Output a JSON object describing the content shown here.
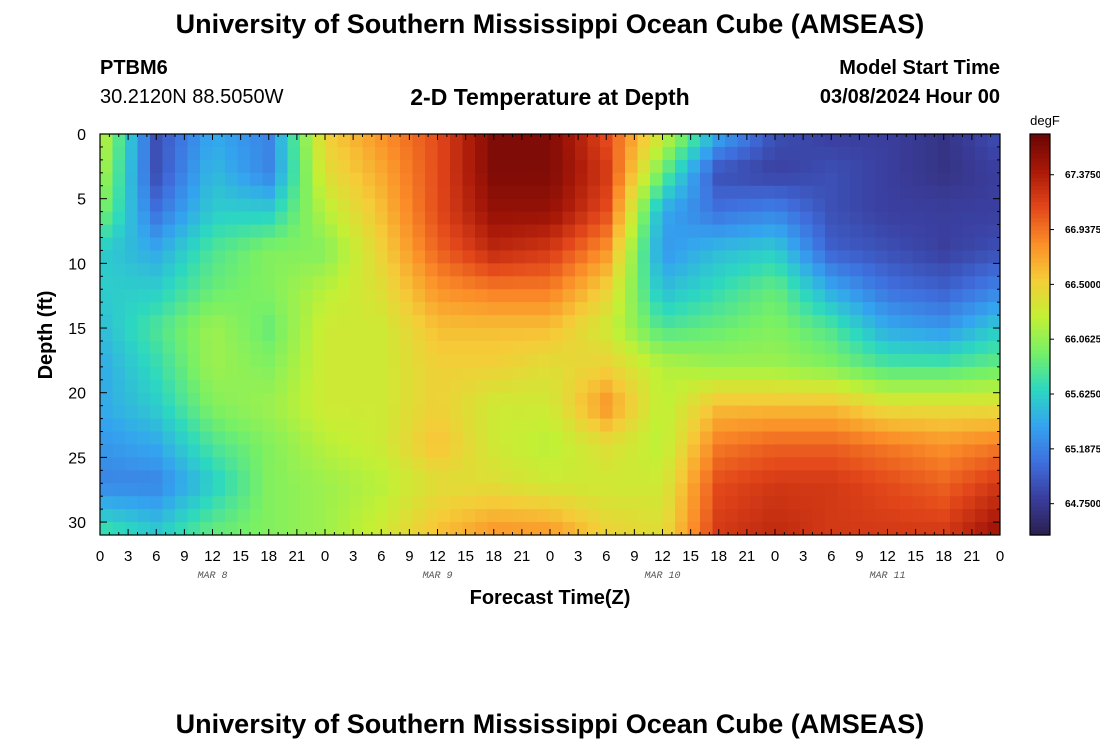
{
  "page": {
    "title": "University of Southern Mississippi Ocean Cube (AMSEAS)",
    "footer_title": "University of Southern Mississippi Ocean Cube (AMSEAS)",
    "station": "PTBM6",
    "coordinates": "30.2120N  88.5050W",
    "plot_title": "2-D Temperature at Depth",
    "model_start_label": "Model Start Time",
    "model_start_value": "03/08/2024 Hour 00"
  },
  "chart_data": {
    "type": "heatmap",
    "title": "2-D Temperature at Depth",
    "xlabel": "Forecast Time(Z)",
    "ylabel": "Depth (ft)",
    "colorbar_label": "degF",
    "x_tick_labels": [
      "0",
      "3",
      "6",
      "9",
      "12",
      "15",
      "18",
      "21",
      "0",
      "3",
      "6",
      "9",
      "12",
      "15",
      "18",
      "21",
      "0",
      "3",
      "6",
      "9",
      "12",
      "15",
      "18",
      "21",
      "0",
      "3",
      "6",
      "9",
      "12",
      "15",
      "18",
      "21",
      "0"
    ],
    "day_labels": [
      "MAR 8",
      "MAR 9",
      "MAR 10",
      "MAR 11"
    ],
    "x_range_hours": [
      0,
      96
    ],
    "y_ticks": [
      0,
      5,
      10,
      15,
      20,
      25,
      30
    ],
    "y_range_ft": [
      0,
      31
    ],
    "colorbar_ticks": [
      "67.3750",
      "66.9375",
      "66.5000",
      "66.0625",
      "65.6250",
      "65.1875",
      "64.7500"
    ],
    "value_range_degF": [
      64.5,
      67.7
    ],
    "colormap": [
      "#2a1f4e",
      "#3a3d9c",
      "#3f6fde",
      "#34a4ef",
      "#2cd8c0",
      "#76f066",
      "#c4f034",
      "#f5cc38",
      "#fb8d28",
      "#e2461a",
      "#a81808",
      "#6a0505"
    ],
    "grid_hours": [
      0,
      6,
      12,
      18,
      24,
      30,
      36,
      42,
      48,
      54,
      60,
      66,
      72,
      78,
      84,
      90,
      96
    ],
    "grid_depths": [
      0,
      3,
      6,
      9,
      12,
      15,
      18,
      21,
      24,
      27,
      31
    ],
    "values": [
      [
        66.3,
        64.9,
        65.4,
        65.2,
        66.5,
        66.8,
        67.1,
        67.6,
        67.6,
        67.1,
        66.3,
        65.4,
        64.9,
        64.8,
        64.8,
        64.7,
        64.9
      ],
      [
        66.2,
        64.9,
        65.5,
        65.2,
        66.4,
        66.7,
        67.1,
        67.6,
        67.6,
        67.2,
        65.9,
        64.9,
        64.8,
        64.9,
        64.8,
        64.7,
        64.8
      ],
      [
        66.0,
        65.1,
        65.6,
        65.6,
        66.2,
        66.6,
        67.1,
        67.5,
        67.5,
        67.1,
        65.4,
        65.1,
        65.2,
        64.9,
        64.8,
        64.8,
        64.8
      ],
      [
        65.6,
        65.4,
        65.8,
        66.0,
        66.0,
        66.5,
        67.0,
        67.3,
        67.2,
        66.8,
        65.3,
        65.5,
        65.6,
        65.0,
        64.9,
        64.8,
        64.9
      ],
      [
        65.6,
        65.6,
        65.9,
        66.0,
        66.2,
        66.4,
        66.8,
        66.9,
        66.9,
        66.5,
        65.5,
        65.7,
        65.9,
        65.4,
        65.1,
        65.0,
        65.2
      ],
      [
        65.5,
        65.8,
        66.1,
        65.9,
        66.3,
        66.3,
        66.6,
        66.6,
        66.6,
        66.3,
        65.8,
        65.9,
        66.0,
        65.8,
        65.4,
        65.3,
        65.6
      ],
      [
        65.4,
        65.7,
        66.1,
        66.0,
        66.3,
        66.3,
        66.5,
        66.5,
        66.4,
        66.5,
        66.2,
        66.1,
        66.1,
        66.0,
        65.8,
        65.8,
        65.9
      ],
      [
        65.4,
        65.6,
        66.0,
        66.1,
        66.3,
        66.3,
        66.5,
        66.3,
        66.3,
        66.8,
        66.2,
        66.6,
        66.6,
        66.6,
        66.4,
        66.4,
        66.4
      ],
      [
        65.3,
        65.4,
        65.8,
        66.0,
        66.2,
        66.3,
        66.6,
        66.3,
        66.2,
        66.4,
        66.2,
        66.9,
        67.0,
        67.0,
        66.9,
        66.8,
        66.9
      ],
      [
        65.2,
        65.2,
        65.6,
        66.0,
        66.1,
        66.2,
        66.4,
        66.4,
        66.3,
        66.3,
        66.3,
        67.1,
        67.2,
        67.2,
        67.1,
        67.0,
        67.2
      ],
      [
        65.8,
        65.6,
        65.9,
        66.0,
        66.1,
        66.3,
        66.6,
        66.8,
        66.8,
        66.5,
        66.4,
        67.2,
        67.3,
        67.2,
        67.2,
        67.2,
        67.5
      ]
    ]
  }
}
